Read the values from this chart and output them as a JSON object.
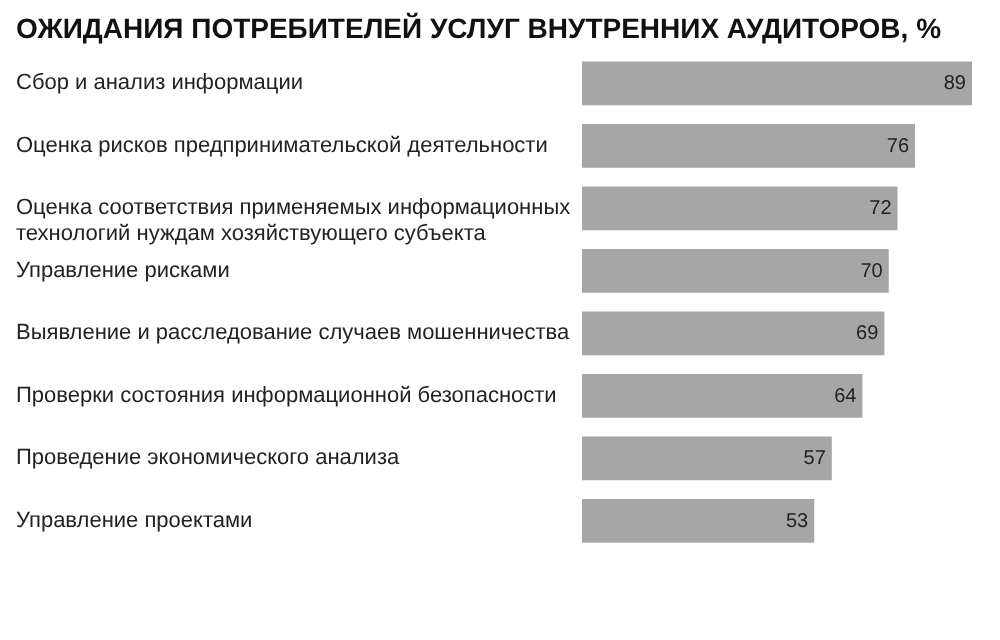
{
  "chart_data": {
    "type": "bar",
    "orientation": "horizontal",
    "title": "ОЖИДАНИЯ ПОТРЕБИТЕЛЕЙ УСЛУГ ВНУТРЕННИХ АУДИТОРОВ, %",
    "categories": [
      "Сбор и анализ информации",
      "Оценка рисков предпринимательской деятельности",
      "Оценка соответствия применяемых информационных технологий нуждам хозяйствующего субъекта",
      "Управление рисками",
      "Выявление и расследование случаев мошенничества",
      "Проверки состояния информационной безопасности",
      "Проведение экономического анализа",
      "Управление проектами"
    ],
    "values": [
      89,
      76,
      72,
      70,
      69,
      64,
      57,
      53
    ],
    "color": "#a6a6a6",
    "data_labels": true
  }
}
